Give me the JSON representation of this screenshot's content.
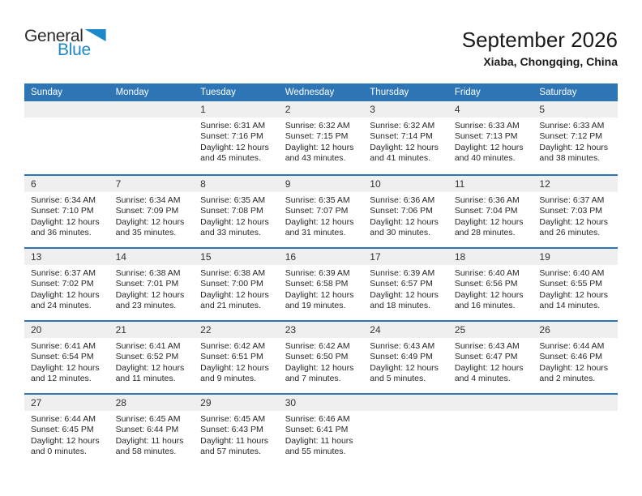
{
  "logo": {
    "part1": "General",
    "part2": "Blue"
  },
  "header": {
    "title": "September 2026",
    "subtitle": "Xiaba, Chongqing, China"
  },
  "weekdays": [
    "Sunday",
    "Monday",
    "Tuesday",
    "Wednesday",
    "Thursday",
    "Friday",
    "Saturday"
  ],
  "colors": {
    "header_bg": "#2E75B6",
    "row_divider": "#2E75B6",
    "date_strip_bg": "#EFEFEF",
    "logo_blue": "#1C87C9",
    "weekday_text": "#FFFFFF",
    "body_text": "#262626"
  },
  "weeks": [
    [
      null,
      null,
      {
        "day": "1",
        "sunrise": "Sunrise: 6:31 AM",
        "sunset": "Sunset: 7:16 PM",
        "daylight": "Daylight: 12 hours and 45 minutes."
      },
      {
        "day": "2",
        "sunrise": "Sunrise: 6:32 AM",
        "sunset": "Sunset: 7:15 PM",
        "daylight": "Daylight: 12 hours and 43 minutes."
      },
      {
        "day": "3",
        "sunrise": "Sunrise: 6:32 AM",
        "sunset": "Sunset: 7:14 PM",
        "daylight": "Daylight: 12 hours and 41 minutes."
      },
      {
        "day": "4",
        "sunrise": "Sunrise: 6:33 AM",
        "sunset": "Sunset: 7:13 PM",
        "daylight": "Daylight: 12 hours and 40 minutes."
      },
      {
        "day": "5",
        "sunrise": "Sunrise: 6:33 AM",
        "sunset": "Sunset: 7:12 PM",
        "daylight": "Daylight: 12 hours and 38 minutes."
      }
    ],
    [
      {
        "day": "6",
        "sunrise": "Sunrise: 6:34 AM",
        "sunset": "Sunset: 7:10 PM",
        "daylight": "Daylight: 12 hours and 36 minutes."
      },
      {
        "day": "7",
        "sunrise": "Sunrise: 6:34 AM",
        "sunset": "Sunset: 7:09 PM",
        "daylight": "Daylight: 12 hours and 35 minutes."
      },
      {
        "day": "8",
        "sunrise": "Sunrise: 6:35 AM",
        "sunset": "Sunset: 7:08 PM",
        "daylight": "Daylight: 12 hours and 33 minutes."
      },
      {
        "day": "9",
        "sunrise": "Sunrise: 6:35 AM",
        "sunset": "Sunset: 7:07 PM",
        "daylight": "Daylight: 12 hours and 31 minutes."
      },
      {
        "day": "10",
        "sunrise": "Sunrise: 6:36 AM",
        "sunset": "Sunset: 7:06 PM",
        "daylight": "Daylight: 12 hours and 30 minutes."
      },
      {
        "day": "11",
        "sunrise": "Sunrise: 6:36 AM",
        "sunset": "Sunset: 7:04 PM",
        "daylight": "Daylight: 12 hours and 28 minutes."
      },
      {
        "day": "12",
        "sunrise": "Sunrise: 6:37 AM",
        "sunset": "Sunset: 7:03 PM",
        "daylight": "Daylight: 12 hours and 26 minutes."
      }
    ],
    [
      {
        "day": "13",
        "sunrise": "Sunrise: 6:37 AM",
        "sunset": "Sunset: 7:02 PM",
        "daylight": "Daylight: 12 hours and 24 minutes."
      },
      {
        "day": "14",
        "sunrise": "Sunrise: 6:38 AM",
        "sunset": "Sunset: 7:01 PM",
        "daylight": "Daylight: 12 hours and 23 minutes."
      },
      {
        "day": "15",
        "sunrise": "Sunrise: 6:38 AM",
        "sunset": "Sunset: 7:00 PM",
        "daylight": "Daylight: 12 hours and 21 minutes."
      },
      {
        "day": "16",
        "sunrise": "Sunrise: 6:39 AM",
        "sunset": "Sunset: 6:58 PM",
        "daylight": "Daylight: 12 hours and 19 minutes."
      },
      {
        "day": "17",
        "sunrise": "Sunrise: 6:39 AM",
        "sunset": "Sunset: 6:57 PM",
        "daylight": "Daylight: 12 hours and 18 minutes."
      },
      {
        "day": "18",
        "sunrise": "Sunrise: 6:40 AM",
        "sunset": "Sunset: 6:56 PM",
        "daylight": "Daylight: 12 hours and 16 minutes."
      },
      {
        "day": "19",
        "sunrise": "Sunrise: 6:40 AM",
        "sunset": "Sunset: 6:55 PM",
        "daylight": "Daylight: 12 hours and 14 minutes."
      }
    ],
    [
      {
        "day": "20",
        "sunrise": "Sunrise: 6:41 AM",
        "sunset": "Sunset: 6:54 PM",
        "daylight": "Daylight: 12 hours and 12 minutes."
      },
      {
        "day": "21",
        "sunrise": "Sunrise: 6:41 AM",
        "sunset": "Sunset: 6:52 PM",
        "daylight": "Daylight: 12 hours and 11 minutes."
      },
      {
        "day": "22",
        "sunrise": "Sunrise: 6:42 AM",
        "sunset": "Sunset: 6:51 PM",
        "daylight": "Daylight: 12 hours and 9 minutes."
      },
      {
        "day": "23",
        "sunrise": "Sunrise: 6:42 AM",
        "sunset": "Sunset: 6:50 PM",
        "daylight": "Daylight: 12 hours and 7 minutes."
      },
      {
        "day": "24",
        "sunrise": "Sunrise: 6:43 AM",
        "sunset": "Sunset: 6:49 PM",
        "daylight": "Daylight: 12 hours and 5 minutes."
      },
      {
        "day": "25",
        "sunrise": "Sunrise: 6:43 AM",
        "sunset": "Sunset: 6:47 PM",
        "daylight": "Daylight: 12 hours and 4 minutes."
      },
      {
        "day": "26",
        "sunrise": "Sunrise: 6:44 AM",
        "sunset": "Sunset: 6:46 PM",
        "daylight": "Daylight: 12 hours and 2 minutes."
      }
    ],
    [
      {
        "day": "27",
        "sunrise": "Sunrise: 6:44 AM",
        "sunset": "Sunset: 6:45 PM",
        "daylight": "Daylight: 12 hours and 0 minutes."
      },
      {
        "day": "28",
        "sunrise": "Sunrise: 6:45 AM",
        "sunset": "Sunset: 6:44 PM",
        "daylight": "Daylight: 11 hours and 58 minutes."
      },
      {
        "day": "29",
        "sunrise": "Sunrise: 6:45 AM",
        "sunset": "Sunset: 6:43 PM",
        "daylight": "Daylight: 11 hours and 57 minutes."
      },
      {
        "day": "30",
        "sunrise": "Sunrise: 6:46 AM",
        "sunset": "Sunset: 6:41 PM",
        "daylight": "Daylight: 11 hours and 55 minutes."
      },
      null,
      null,
      null
    ]
  ]
}
